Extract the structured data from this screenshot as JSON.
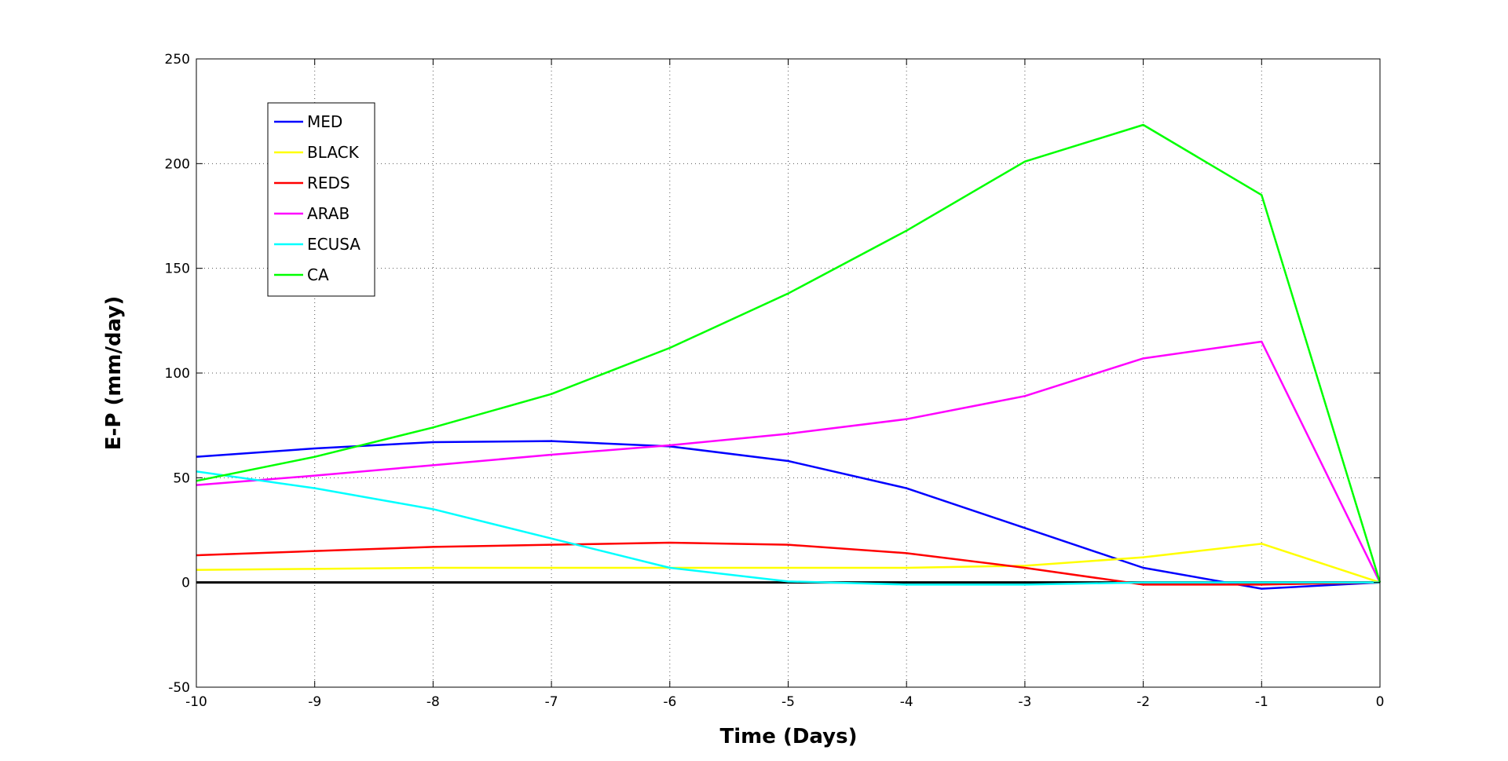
{
  "chart_data": {
    "type": "line",
    "title": "",
    "xlabel": "Time (Days)",
    "ylabel": "E-P (mm/day)",
    "x": [
      -10,
      -9,
      -8,
      -7,
      -6,
      -5,
      -4,
      -3,
      -2,
      -1,
      0
    ],
    "xlim": [
      -10,
      0
    ],
    "ylim": [
      -50,
      250
    ],
    "xticks": [
      -10,
      -9,
      -8,
      -7,
      -6,
      -5,
      -4,
      -3,
      -2,
      -1,
      0
    ],
    "yticks": [
      -50,
      0,
      50,
      100,
      150,
      200,
      250
    ],
    "grid": true,
    "grid_style": "dotted",
    "legend_position": "top-left",
    "zero_line": true,
    "series": [
      {
        "name": "MED",
        "color": "#0000ff",
        "values": [
          60,
          64,
          67,
          67.5,
          65,
          58,
          45,
          26,
          7,
          -3,
          0
        ]
      },
      {
        "name": "BLACK",
        "color": "#ffff00",
        "values": [
          6,
          6.5,
          7,
          7,
          7,
          7,
          7,
          8,
          12,
          18.5,
          0
        ]
      },
      {
        "name": "REDS",
        "color": "#ff0000",
        "values": [
          13,
          15,
          17,
          18,
          19,
          18,
          14,
          7,
          -1,
          -1,
          0
        ]
      },
      {
        "name": "ARAB",
        "color": "#ff00ff",
        "values": [
          46.5,
          51,
          56,
          61,
          65.5,
          71,
          78,
          89,
          107,
          115,
          0
        ]
      },
      {
        "name": "ECUSA",
        "color": "#00ffff",
        "values": [
          53,
          45,
          35,
          21,
          7,
          0.5,
          -1,
          -1,
          0,
          0,
          0
        ]
      },
      {
        "name": "CA",
        "color": "#00ff00",
        "values": [
          48.5,
          60,
          74,
          90,
          112,
          138,
          168,
          201,
          218.5,
          185,
          0
        ]
      }
    ]
  }
}
